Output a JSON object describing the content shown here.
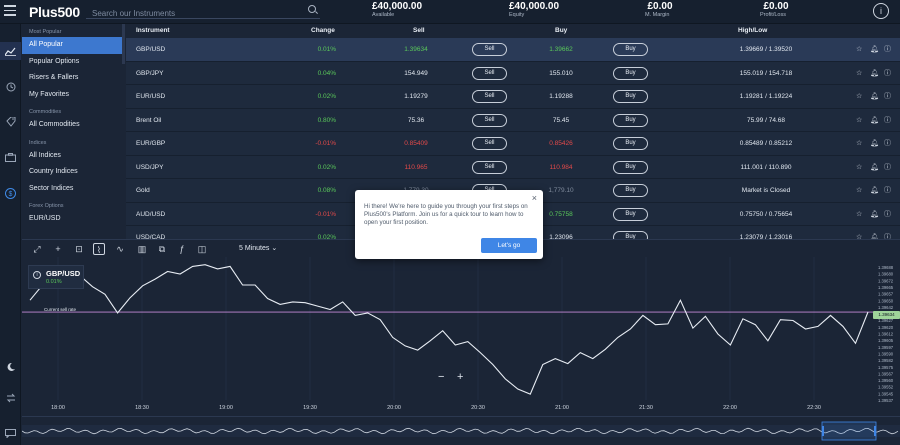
{
  "header": {
    "logo": "Plus500",
    "search_placeholder": "Search our Instruments",
    "stats": [
      {
        "value": "£40,000.00",
        "label": "Available"
      },
      {
        "value": "£40,000.00",
        "label": "Equity"
      },
      {
        "value": "£0.00",
        "label": "M. Margin"
      },
      {
        "value": "£0.00",
        "label": "Profit/Loss"
      }
    ],
    "info_glyph": "i"
  },
  "iconbar": {
    "icons": [
      "hamburger-menu-icon",
      "chart-trend-icon",
      "clock-icon",
      "tag-icon",
      "briefcase-icon",
      "dollar-icon",
      "moon-icon",
      "transfer-icon",
      "message-icon"
    ]
  },
  "sidebar": {
    "sections": [
      {
        "heading": "Most Popular",
        "items": [
          "All Popular",
          "Popular Options",
          "Risers & Fallers",
          "My Favorites"
        ]
      },
      {
        "heading": "Commodities",
        "items": [
          "All Commodities"
        ]
      },
      {
        "heading": "Indices",
        "items": [
          "All Indices",
          "Country Indices",
          "Sector Indices"
        ]
      },
      {
        "heading": "Forex Options",
        "items": [
          "EUR/USD"
        ]
      }
    ],
    "active_item": "All Popular"
  },
  "table": {
    "headers": {
      "instrument": "Instrument",
      "change": "Change",
      "sell": "Sell",
      "buy": "Buy",
      "highlow": "High/Low"
    },
    "sell_label": "Sell",
    "buy_label": "Buy",
    "rows": [
      {
        "instrument": "GBP/USD",
        "change": "0.01%",
        "change_dir": "up",
        "sell": "1.39634",
        "buy": "1.39662",
        "price_color": "green",
        "highlow": "1.39669 / 1.39520"
      },
      {
        "instrument": "GBP/JPY",
        "change": "0.04%",
        "change_dir": "up",
        "sell": "154.949",
        "buy": "155.010",
        "price_color": "white",
        "highlow": "155.019 / 154.718"
      },
      {
        "instrument": "EUR/USD",
        "change": "0.02%",
        "change_dir": "up",
        "sell": "1.19279",
        "buy": "1.19288",
        "price_color": "white",
        "highlow": "1.19281 / 1.19224"
      },
      {
        "instrument": "Brent Oil",
        "change": "0.80%",
        "change_dir": "up",
        "sell": "75.36",
        "buy": "75.45",
        "price_color": "white",
        "highlow": "75.99 / 74.68"
      },
      {
        "instrument": "EUR/GBP",
        "change": "-0.01%",
        "change_dir": "down",
        "sell": "0.85409",
        "buy": "0.85426",
        "price_color": "red",
        "highlow": "0.85489 / 0.85212"
      },
      {
        "instrument": "USD/JPY",
        "change": "0.02%",
        "change_dir": "up",
        "sell": "110.965",
        "buy": "110.984",
        "price_color": "red",
        "highlow": "111.001 / 110.890"
      },
      {
        "instrument": "Gold",
        "change": "0.08%",
        "change_dir": "up",
        "sell": "1,779.30",
        "buy": "1,779.10",
        "price_color": "grey",
        "highlow": "Market is Closed"
      },
      {
        "instrument": "AUD/USD",
        "change": "-0.01%",
        "change_dir": "down",
        "sell": "0.75750",
        "buy": "0.75758",
        "price_color": "green",
        "highlow": "0.75750 / 0.75654"
      },
      {
        "instrument": "USD/CAD",
        "change": "0.02%",
        "change_dir": "up",
        "sell": "1.23089",
        "buy": "1.23096",
        "price_color": "white",
        "highlow": "1.23079 / 1.23016"
      }
    ],
    "row_icons": [
      "star-icon",
      "bell-icon",
      "info-icon"
    ]
  },
  "chart_toolbar": {
    "timeframe": "5 Minutes"
  },
  "chart": {
    "symbol": "GBP/USD",
    "change": "0.01%",
    "current_label": "Current sell rate",
    "current_price": "1.39634",
    "zoom_out": "−",
    "zoom_in": "+"
  },
  "chart_data": {
    "type": "line",
    "title": "",
    "xlabel": "",
    "ylabel": "",
    "x_ticks": [
      "18:00",
      "18:30",
      "19:00",
      "19:30",
      "20:00",
      "20:30",
      "21:00",
      "21:30",
      "22:00",
      "22:30"
    ],
    "y_ticks": [
      "1.39688",
      "1.39680",
      "1.39672",
      "1.39665",
      "1.39657",
      "1.39650",
      "1.39642",
      "1.39635",
      "1.39627",
      "1.39620",
      "1.39612",
      "1.39605",
      "1.39597",
      "1.39590",
      "1.39582",
      "1.39575",
      "1.39567",
      "1.39560",
      "1.39552",
      "1.39545",
      "1.39537"
    ],
    "ylim": [
      1.3953,
      1.39692
    ],
    "current": 1.39634,
    "series": [
      {
        "values": [
          1.39648,
          1.39666,
          1.39675,
          1.39666,
          1.39677,
          1.39664,
          1.39655,
          1.39633,
          1.39651,
          1.39665,
          1.39673,
          1.39682,
          1.39679,
          1.39688,
          1.3969,
          1.39685,
          1.39688,
          1.39666,
          1.39666,
          1.3965,
          1.39643,
          1.39646,
          1.39645,
          1.39641,
          1.39637,
          1.39646,
          1.3963,
          1.39633,
          1.39625,
          1.39604,
          1.39594,
          1.39589,
          1.396,
          1.39612,
          1.39595,
          1.39599,
          1.39586,
          1.39572,
          1.39555,
          1.39543,
          1.39537,
          1.39572,
          1.39579,
          1.39573,
          1.39586,
          1.39579,
          1.3959,
          1.39604,
          1.39614,
          1.3963,
          1.39619,
          1.3962,
          1.39648,
          1.39615,
          1.39629,
          1.39608,
          1.39595,
          1.39626,
          1.39619,
          1.396,
          1.39625,
          1.39624,
          1.39614,
          1.39617,
          1.3963,
          1.39617,
          1.39597,
          1.39634
        ]
      }
    ]
  },
  "popup": {
    "message": "Hi there! We're here to guide you through your first steps on Plus500's Platform. Join us for a quick tour to learn how to open your first position.",
    "button": "Let's go",
    "close": "×"
  }
}
